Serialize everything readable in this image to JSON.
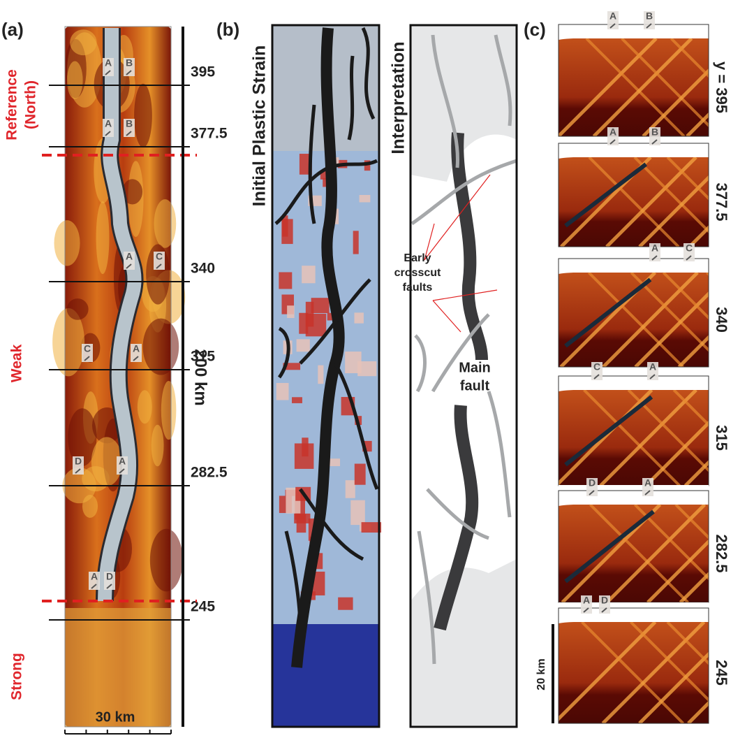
{
  "panel_a": {
    "label": "(a)",
    "zone_labels": {
      "reference": [
        "Reference",
        "(North)"
      ],
      "weak": "Weak",
      "strong": "Strong"
    },
    "sections": [
      {
        "y": "395",
        "markers": [
          "A",
          "B"
        ]
      },
      {
        "y": "377.5",
        "markers": [
          "A",
          "B"
        ]
      },
      {
        "y": "340",
        "markers": [
          "A",
          "C"
        ]
      },
      {
        "y": "315",
        "markers": [
          "C",
          "A"
        ]
      },
      {
        "y": "282.5",
        "markers": [
          "D",
          "A"
        ]
      },
      {
        "y": "245",
        "markers": [
          "A",
          "D"
        ]
      }
    ],
    "length": "200 km",
    "width": "30 km"
  },
  "panel_b": {
    "label": "(b)",
    "left_title": "Initial Plastic Strain",
    "right_title": "Interpretation",
    "crosscut_label": [
      "Early",
      "crosscut",
      "faults"
    ],
    "main_fault_label": [
      "Main",
      "fault"
    ]
  },
  "panel_c": {
    "label": "(c)",
    "sections": [
      {
        "y": "y = 395",
        "markers": [
          "A",
          "B"
        ]
      },
      {
        "y": "377.5",
        "markers": [
          "A",
          "B"
        ]
      },
      {
        "y": "340",
        "markers": [
          "A",
          "C"
        ]
      },
      {
        "y": "315",
        "markers": [
          "C",
          "A"
        ]
      },
      {
        "y": "282.5",
        "markers": [
          "D",
          "A"
        ]
      },
      {
        "y": "245",
        "markers": [
          "A",
          "D"
        ]
      }
    ],
    "scale": "20 km"
  }
}
